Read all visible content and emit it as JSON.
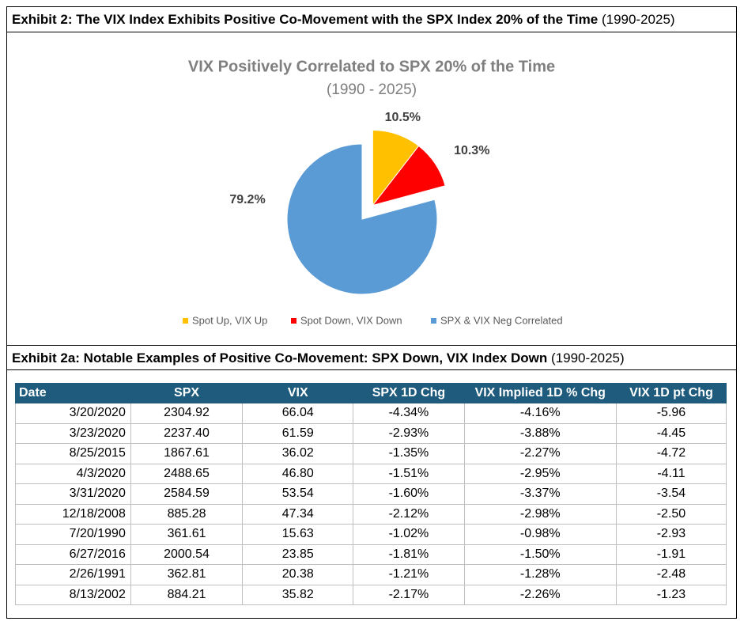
{
  "exhibit2": {
    "title": "Exhibit 2: The VIX Index Exhibits Positive Co-Movement with the SPX Index 20% of the Time",
    "period": "(1990-2025)"
  },
  "chart_data": {
    "type": "pie",
    "title": "VIX Positively Correlated to SPX 20% of the Time",
    "subtitle": "(1990 - 2025)",
    "categories": [
      "Spot Up, VIX Up",
      "Spot Down, VIX Down",
      "SPX & VIX Neg Correlated"
    ],
    "values": [
      10.5,
      10.3,
      79.2
    ],
    "value_labels": [
      "10.5%",
      "10.3%",
      "79.2%"
    ],
    "colors": [
      "#ffc000",
      "#ff0000",
      "#5b9bd5"
    ],
    "legend": "bottom"
  },
  "exhibit2a": {
    "title": "Exhibit 2a: Notable Examples of Positive Co-Movement: SPX Down, VIX Index Down",
    "period": "(1990-2025)"
  },
  "table": {
    "columns": [
      "Date",
      "SPX",
      "VIX",
      "SPX 1D Chg",
      "VIX Implied 1D % Chg",
      "VIX 1D pt Chg"
    ],
    "rows": [
      [
        "3/20/2020",
        "2304.92",
        "66.04",
        "-4.34%",
        "-4.16%",
        "-5.96"
      ],
      [
        "3/23/2020",
        "2237.40",
        "61.59",
        "-2.93%",
        "-3.88%",
        "-4.45"
      ],
      [
        "8/25/2015",
        "1867.61",
        "36.02",
        "-1.35%",
        "-2.27%",
        "-4.72"
      ],
      [
        "4/3/2020",
        "2488.65",
        "46.80",
        "-1.51%",
        "-2.95%",
        "-4.11"
      ],
      [
        "3/31/2020",
        "2584.59",
        "53.54",
        "-1.60%",
        "-3.37%",
        "-3.54"
      ],
      [
        "12/18/2008",
        "885.28",
        "47.34",
        "-2.12%",
        "-2.98%",
        "-2.50"
      ],
      [
        "7/20/1990",
        "361.61",
        "15.63",
        "-1.02%",
        "-0.98%",
        "-2.93"
      ],
      [
        "6/27/2016",
        "2000.54",
        "23.85",
        "-1.81%",
        "-1.50%",
        "-1.91"
      ],
      [
        "2/26/1991",
        "362.81",
        "20.38",
        "-1.21%",
        "-1.28%",
        "-2.48"
      ],
      [
        "8/13/2002",
        "884.21",
        "35.82",
        "-2.17%",
        "-2.26%",
        "-1.23"
      ]
    ]
  }
}
